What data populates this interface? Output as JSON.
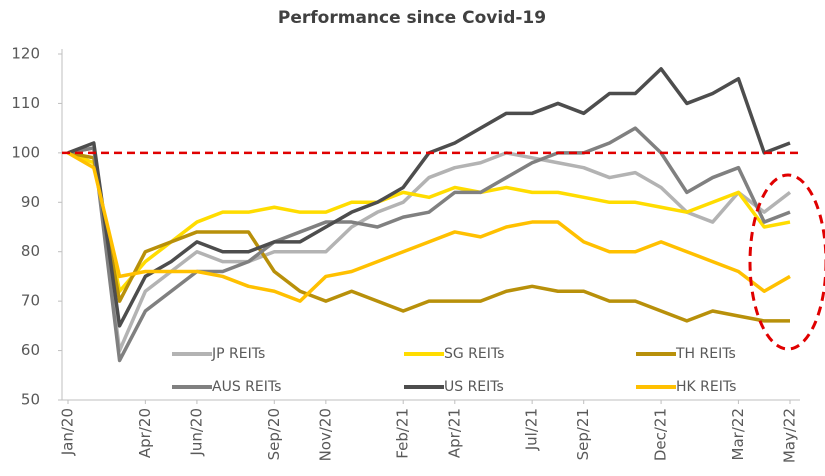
{
  "chart_data": {
    "type": "line",
    "title": "Performance since Covid-19",
    "categories": [
      "Jan/20",
      null,
      null,
      "Apr/20",
      null,
      "Jun/20",
      null,
      null,
      "Sep/20",
      null,
      "Nov/20",
      null,
      null,
      "Feb/21",
      null,
      "Apr/21",
      null,
      null,
      "Jul/21",
      null,
      "Sep/21",
      null,
      null,
      "Dec/21",
      null,
      null,
      "Mar/22",
      null,
      "May/22"
    ],
    "series": [
      {
        "name": "JP REITs",
        "color": "#b3b3b3",
        "values": [
          100,
          101,
          60,
          72,
          76,
          80,
          78,
          78,
          80,
          80,
          80,
          85,
          88,
          90,
          95,
          97,
          98,
          100,
          99,
          98,
          97,
          95,
          96,
          93,
          88,
          86,
          92,
          88,
          92
        ]
      },
      {
        "name": "SG REITs",
        "color": "#ffdc00",
        "values": [
          100,
          98,
          72,
          78,
          82,
          86,
          88,
          88,
          89,
          88,
          88,
          90,
          90,
          92,
          91,
          93,
          92,
          93,
          92,
          92,
          91,
          90,
          90,
          89,
          88,
          90,
          92,
          85,
          86
        ]
      },
      {
        "name": "TH REITs",
        "color": "#b8900a",
        "values": [
          100,
          99,
          70,
          80,
          82,
          84,
          84,
          84,
          76,
          72,
          70,
          72,
          70,
          68,
          70,
          70,
          70,
          72,
          73,
          72,
          72,
          70,
          70,
          68,
          66,
          68,
          67,
          66,
          66
        ]
      },
      {
        "name": "AUS REITs",
        "color": "#808080",
        "values": [
          100,
          101,
          58,
          68,
          72,
          76,
          76,
          78,
          82,
          84,
          86,
          86,
          85,
          87,
          88,
          92,
          92,
          95,
          98,
          100,
          100,
          102,
          105,
          100,
          92,
          95,
          97,
          86,
          88
        ]
      },
      {
        "name": "US REITs",
        "color": "#4d4d4d",
        "values": [
          100,
          102,
          65,
          75,
          78,
          82,
          80,
          80,
          82,
          82,
          85,
          88,
          90,
          93,
          100,
          102,
          105,
          108,
          108,
          110,
          108,
          112,
          112,
          117,
          110,
          112,
          115,
          100,
          102
        ]
      },
      {
        "name": "HK REITs",
        "color": "#ffc000",
        "values": [
          100,
          97,
          75,
          76,
          76,
          76,
          75,
          73,
          72,
          70,
          75,
          76,
          78,
          80,
          82,
          84,
          83,
          85,
          86,
          86,
          82,
          80,
          80,
          82,
          80,
          78,
          76,
          72,
          75
        ]
      }
    ],
    "ylim": [
      50,
      120
    ],
    "yticks": [
      50,
      60,
      70,
      80,
      90,
      100,
      110,
      120
    ],
    "reference_line": {
      "value": 100,
      "color": "#e00000"
    }
  }
}
